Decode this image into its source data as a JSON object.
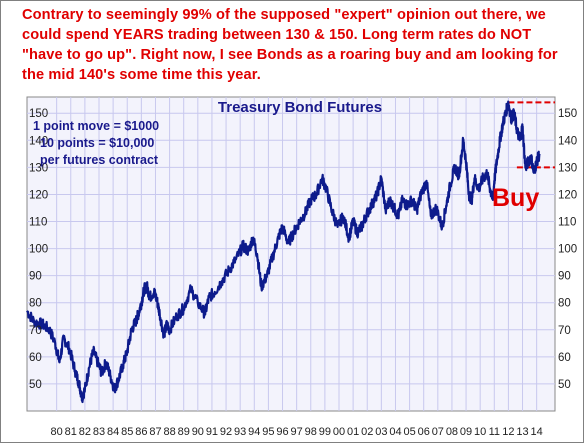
{
  "annotation": {
    "text": "Contrary to seemingly 99% of the supposed \"expert\" opinion out there, we could spend YEARS trading between 130 & 150. Long term rates do NOT \"have to go up\". Right now, I see Bonds as a roaring buy and am looking for the mid 140's some time this year."
  },
  "colors": {
    "series": "#0d1b8c",
    "annotation": "#e00000",
    "grid": "#c8c8ee",
    "plot_background": "#f3f3fc",
    "threshold": "#e00000"
  },
  "chart_data": {
    "type": "line",
    "title": "Treasury Bond Futures",
    "notes": [
      "1 point move = $1000",
      "10 points = $10,000",
      "per futures contract"
    ],
    "ylim": [
      40,
      156
    ],
    "y_ticks": [
      50,
      60,
      70,
      80,
      90,
      100,
      110,
      120,
      130,
      140,
      150
    ],
    "x_range": [
      1977.9,
      2015.3
    ],
    "x_tick_labels": [
      "80",
      "81",
      "82",
      "83",
      "84",
      "85",
      "86",
      "87",
      "88",
      "89",
      "90",
      "91",
      "92",
      "93",
      "94",
      "95",
      "96",
      "97",
      "98",
      "99",
      "00",
      "01",
      "02",
      "03",
      "04",
      "05",
      "06",
      "07",
      "08",
      "09",
      "10",
      "11",
      "12",
      "13",
      "14"
    ],
    "y_axis": "both sides",
    "grid": true,
    "series": [
      {
        "x": [
          1977.9,
          1978.4,
          1979.0,
          1979.5,
          1979.9,
          1980.2,
          1980.5,
          1980.9,
          1981.3,
          1981.6,
          1981.8,
          1982.0,
          1982.3,
          1982.6,
          1982.9,
          1983.2,
          1983.5,
          1983.8,
          1984.1,
          1984.4,
          1984.7,
          1985.0,
          1985.3,
          1985.6,
          1985.8,
          1986.0,
          1986.2,
          1986.4,
          1986.6,
          1986.9,
          1987.1,
          1987.3,
          1987.6,
          1987.8,
          1988.0,
          1988.5,
          1989.0,
          1989.5,
          1990.0,
          1990.5,
          1990.8,
          1991.2,
          1991.7,
          1992.2,
          1992.7,
          1993.2,
          1993.6,
          1993.9,
          1994.2,
          1994.5,
          1994.9,
          1995.3,
          1995.7,
          1996.0,
          1996.4,
          1996.8,
          1997.2,
          1997.6,
          1998.0,
          1998.4,
          1998.8,
          1999.1,
          1999.5,
          1999.9,
          2000.3,
          2000.7,
          2001.0,
          2001.3,
          2001.6,
          2001.9,
          2002.3,
          2002.7,
          2003.0,
          2003.3,
          2003.6,
          2003.9,
          2004.2,
          2004.5,
          2004.8,
          2005.2,
          2005.5,
          2005.8,
          2006.2,
          2006.5,
          2006.9,
          2007.3,
          2007.6,
          2007.9,
          2008.2,
          2008.5,
          2008.8,
          2009.0,
          2009.2,
          2009.4,
          2009.6,
          2009.9,
          2010.2,
          2010.5,
          2010.7,
          2010.9,
          2011.0,
          2011.2,
          2011.4,
          2011.6,
          2011.8,
          2012.0,
          2012.2,
          2012.4,
          2012.6,
          2012.8,
          2013.0,
          2013.2,
          2013.4,
          2013.6,
          2013.8,
          2014.0,
          2014.2
        ],
        "y": [
          77,
          73,
          72,
          70,
          65,
          58,
          67,
          63,
          55,
          50,
          45,
          48,
          56,
          62,
          58,
          54,
          58,
          53,
          48,
          52,
          57,
          62,
          70,
          73,
          76,
          80,
          85,
          86,
          82,
          84,
          81,
          76,
          68,
          72,
          70,
          75,
          78,
          85,
          80,
          76,
          82,
          84,
          88,
          92,
          96,
          101,
          99,
          104,
          98,
          86,
          90,
          97,
          104,
          108,
          102,
          106,
          110,
          113,
          118,
          120,
          126,
          122,
          114,
          108,
          112,
          104,
          110,
          106,
          108,
          112,
          116,
          120,
          126,
          114,
          118,
          115,
          112,
          118,
          116,
          118,
          114,
          120,
          125,
          112,
          115,
          108,
          116,
          124,
          130,
          127,
          140,
          132,
          120,
          118,
          126,
          122,
          126,
          128,
          122,
          118,
          125,
          133,
          140,
          146,
          150,
          154,
          148,
          150,
          144,
          140,
          145,
          130,
          132,
          134,
          128,
          132,
          135
        ]
      }
    ],
    "thresholds": [
      {
        "y": 154,
        "style": "dashed"
      },
      {
        "y": 130,
        "style": "dashed"
      }
    ],
    "labels": [
      {
        "text": "Buy"
      }
    ]
  }
}
